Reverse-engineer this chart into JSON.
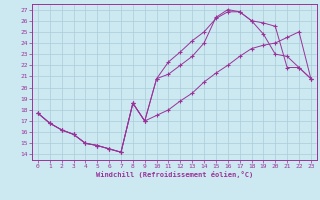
{
  "xlabel": "Windchill (Refroidissement éolien,°C)",
  "bg_color": "#cce8f0",
  "grid_color": "#aaccd8",
  "line_color": "#993399",
  "xlim": [
    -0.5,
    23.5
  ],
  "ylim": [
    13.5,
    27.5
  ],
  "xticks": [
    0,
    1,
    2,
    3,
    4,
    5,
    6,
    7,
    8,
    9,
    10,
    11,
    12,
    13,
    14,
    15,
    16,
    17,
    18,
    19,
    20,
    21,
    22,
    23
  ],
  "yticks": [
    14,
    15,
    16,
    17,
    18,
    19,
    20,
    21,
    22,
    23,
    24,
    25,
    26,
    27
  ],
  "line1_x": [
    0,
    1,
    2,
    3,
    4,
    5,
    6,
    7,
    8,
    9,
    10,
    11,
    12,
    13,
    14,
    15,
    16,
    17,
    18,
    19,
    20,
    21,
    22,
    23
  ],
  "line1_y": [
    17.7,
    16.8,
    16.2,
    15.8,
    15.0,
    14.8,
    14.5,
    14.2,
    18.6,
    17.0,
    17.5,
    18.0,
    18.8,
    19.5,
    20.5,
    21.3,
    22.0,
    22.8,
    23.5,
    23.8,
    24.0,
    24.5,
    25.0,
    20.8
  ],
  "line2_x": [
    0,
    1,
    2,
    3,
    4,
    5,
    6,
    7,
    8,
    9,
    10,
    11,
    12,
    13,
    14,
    15,
    16,
    17,
    18,
    19,
    20,
    21,
    22,
    23
  ],
  "line2_y": [
    17.7,
    16.8,
    16.2,
    15.8,
    15.0,
    14.8,
    14.5,
    14.2,
    18.6,
    17.0,
    20.8,
    22.3,
    23.2,
    24.2,
    25.0,
    26.2,
    26.8,
    26.8,
    26.0,
    25.8,
    25.5,
    21.8,
    21.8,
    20.8
  ],
  "line3_x": [
    0,
    1,
    2,
    3,
    4,
    5,
    6,
    7,
    8,
    9,
    10,
    11,
    12,
    13,
    14,
    15,
    16,
    17,
    18,
    19,
    20,
    21,
    22,
    23
  ],
  "line3_y": [
    17.7,
    16.8,
    16.2,
    15.8,
    15.0,
    14.8,
    14.5,
    14.2,
    18.6,
    17.0,
    20.8,
    21.2,
    22.0,
    22.8,
    24.0,
    26.3,
    27.0,
    26.8,
    26.0,
    24.8,
    23.0,
    22.8,
    21.8,
    20.8
  ]
}
